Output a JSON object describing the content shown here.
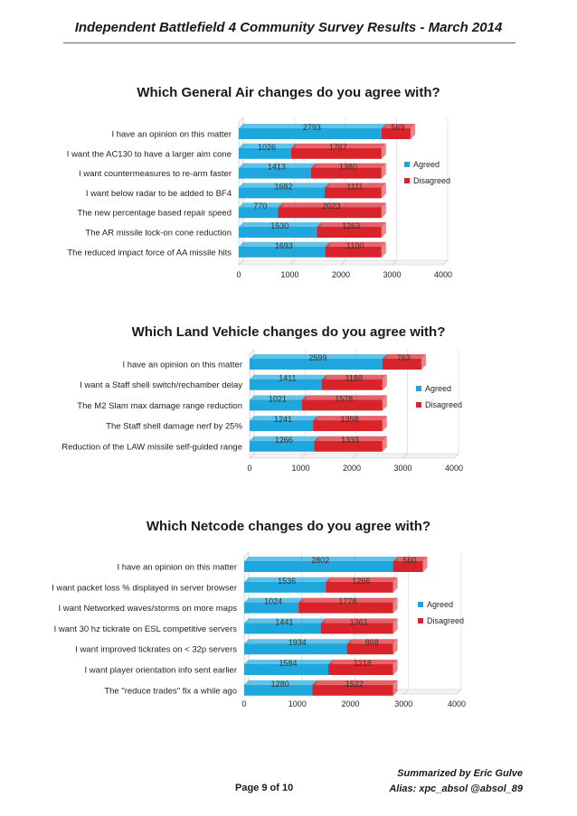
{
  "document": {
    "title": "Independent Battlefield 4 Community Survey Results - March 2014",
    "page": "Page 9 of 10",
    "summarized_by": "Summarized by Eric Gulve",
    "alias": "Alias: xpc_absol @absol_89"
  },
  "colors": {
    "agreed": "#1ea7dc",
    "disagreed": "#d8232a"
  },
  "chart_data": [
    {
      "type": "bar",
      "orientation": "horizontal",
      "stacked": true,
      "title": "Which General Air changes do you agree with?",
      "categories": [
        "I have an opinion on this matter",
        "I want the AC130 to have a larger aim cone",
        "I want countermeasures to re-arm faster",
        "I want below radar to be added to BF4",
        "The new percentage based repair speed",
        "The AR missile lock-on cone reduction",
        "The reduced impact force of AA missile hits"
      ],
      "series": [
        {
          "name": "Agreed",
          "values": [
            2793,
            1026,
            1413,
            1682,
            770,
            1530,
            1693
          ]
        },
        {
          "name": "Disagreed",
          "values": [
            569,
            1767,
            1380,
            1111,
            2023,
            1263,
            1100
          ]
        }
      ],
      "xlim": [
        0,
        4000
      ],
      "xticks": [
        "0",
        "1000",
        "2000",
        "3000",
        "4000"
      ],
      "legend": "right"
    },
    {
      "type": "bar",
      "orientation": "horizontal",
      "stacked": true,
      "title": "Which Land Vehicle changes do you agree with?",
      "categories": [
        "I have an opinion on this matter",
        "I want a Staff shell switch/rechamber delay",
        "The M2 Slam max damage range reduction",
        "The Staff shell damage nerf by 25%",
        "Reduction of the LAW missile self-guided range"
      ],
      "series": [
        {
          "name": "Agreed",
          "values": [
            2599,
            1411,
            1021,
            1241,
            1266
          ]
        },
        {
          "name": "Disagreed",
          "values": [
            763,
            1188,
            1578,
            1358,
            1333
          ]
        }
      ],
      "xlim": [
        0,
        4000
      ],
      "xticks": [
        "0",
        "1000",
        "2000",
        "3000",
        "4000"
      ],
      "legend": "right"
    },
    {
      "type": "bar",
      "orientation": "horizontal",
      "stacked": true,
      "title": "Which Netcode changes do you agree with?",
      "categories": [
        "I have an opinion on this matter",
        "I want packet loss % displayed in server browser",
        "I want Networked waves/storms on more maps",
        "I want 30 hz tickrate on ESL competitive servers",
        "I want improved tickrates on < 32p servers",
        "I want player orientation info sent earlier",
        "The \"reduce trades\" fix a while ago"
      ],
      "series": [
        {
          "name": "Agreed",
          "values": [
            2802,
            1536,
            1024,
            1441,
            1934,
            1584,
            1280
          ]
        },
        {
          "name": "Disagreed",
          "values": [
            560,
            1266,
            1778,
            1361,
            868,
            1218,
            1522
          ]
        }
      ],
      "xlim": [
        0,
        4000
      ],
      "xticks": [
        "0",
        "1000",
        "2000",
        "3000",
        "4000"
      ],
      "legend": "right"
    }
  ]
}
